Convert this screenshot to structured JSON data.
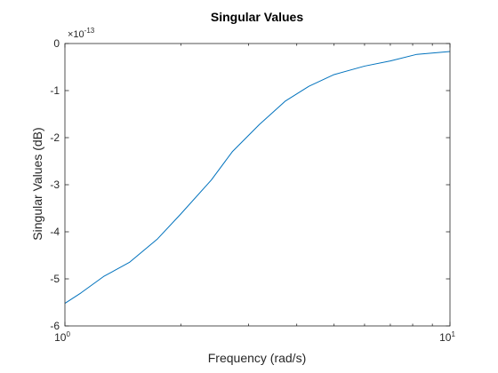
{
  "chart_data": {
    "type": "line",
    "title": "Singular Values",
    "xlabel": "Frequency (rad/s)",
    "ylabel": "Singular Values (dB)",
    "x_scale": "log",
    "xlim": [
      1,
      10
    ],
    "ylim": [
      -6e-13,
      0
    ],
    "x_ticks": [
      {
        "value": 1,
        "base": "10",
        "exp": "0"
      },
      {
        "value": 10,
        "base": "10",
        "exp": "1"
      }
    ],
    "y_multiplier": {
      "base": "×10",
      "exp": "-13"
    },
    "y_ticks": [
      {
        "value": 0,
        "label": "0"
      },
      {
        "value": -1e-13,
        "label": "-1"
      },
      {
        "value": -2e-13,
        "label": "-2"
      },
      {
        "value": -3e-13,
        "label": "-3"
      },
      {
        "value": -4e-13,
        "label": "-4"
      },
      {
        "value": -5e-13,
        "label": "-5"
      },
      {
        "value": -6e-13,
        "label": "-6"
      }
    ],
    "grid": false,
    "series": [
      {
        "color": "#0072BD",
        "x": [
          1.0,
          1.1,
          1.26,
          1.47,
          1.74,
          2.0,
          2.4,
          2.72,
          3.2,
          3.74,
          4.3,
          5.0,
          6.0,
          7.0,
          8.2,
          10.0
        ],
        "y": [
          -5.52e-13,
          -5.3e-13,
          -4.95e-13,
          -4.65e-13,
          -4.15e-13,
          -3.62e-13,
          -2.9e-13,
          -2.3e-13,
          -1.72e-13,
          -1.22e-13,
          -9.1e-14,
          -6.6e-14,
          -4.8e-14,
          -3.7e-14,
          -2.3e-14,
          -1.7e-14
        ]
      }
    ]
  }
}
